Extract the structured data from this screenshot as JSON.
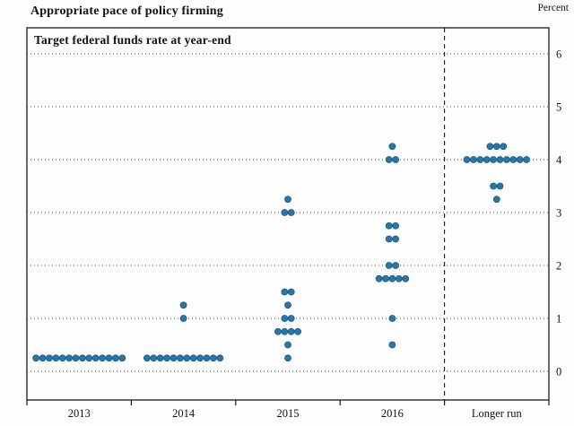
{
  "chart_data": {
    "type": "scatter",
    "title": "Appropriate pace of policy firming",
    "subtitle": "Target federal funds rate at year-end",
    "ylabel": "Percent",
    "ylim": [
      -0.5,
      6.5
    ],
    "yticks": [
      0,
      1,
      2,
      3,
      4,
      5,
      6
    ],
    "grid": "horizontal-dotted",
    "rate_step": 0.25,
    "dot_color": "#2b76a8",
    "dot_edge_color": "#19587f",
    "categories": [
      "2013",
      "2014",
      "2015",
      "2016",
      "Longer run"
    ],
    "separator": {
      "style": "dashed",
      "between": [
        "2016",
        "Longer run"
      ]
    },
    "dots": [
      {
        "category": "2013",
        "values": [
          {
            "rate": 0.25,
            "count": 14
          }
        ]
      },
      {
        "category": "2014",
        "values": [
          {
            "rate": 1.25,
            "count": 1
          },
          {
            "rate": 1.0,
            "count": 1
          },
          {
            "rate": 0.25,
            "count": 12
          }
        ]
      },
      {
        "category": "2015",
        "values": [
          {
            "rate": 3.25,
            "count": 1
          },
          {
            "rate": 3.0,
            "count": 2
          },
          {
            "rate": 1.5,
            "count": 2
          },
          {
            "rate": 1.25,
            "count": 1
          },
          {
            "rate": 1.0,
            "count": 2
          },
          {
            "rate": 0.75,
            "count": 4
          },
          {
            "rate": 0.5,
            "count": 1
          },
          {
            "rate": 0.25,
            "count": 1
          }
        ]
      },
      {
        "category": "2016",
        "values": [
          {
            "rate": 4.25,
            "count": 1
          },
          {
            "rate": 4.0,
            "count": 2
          },
          {
            "rate": 2.75,
            "count": 2
          },
          {
            "rate": 2.5,
            "count": 2
          },
          {
            "rate": 2.0,
            "count": 2
          },
          {
            "rate": 1.75,
            "count": 5
          },
          {
            "rate": 1.0,
            "count": 1
          },
          {
            "rate": 0.5,
            "count": 1
          }
        ]
      },
      {
        "category": "Longer run",
        "values": [
          {
            "rate": 4.25,
            "count": 3
          },
          {
            "rate": 4.0,
            "count": 10
          },
          {
            "rate": 3.5,
            "count": 2
          },
          {
            "rate": 3.25,
            "count": 1
          }
        ]
      }
    ]
  }
}
